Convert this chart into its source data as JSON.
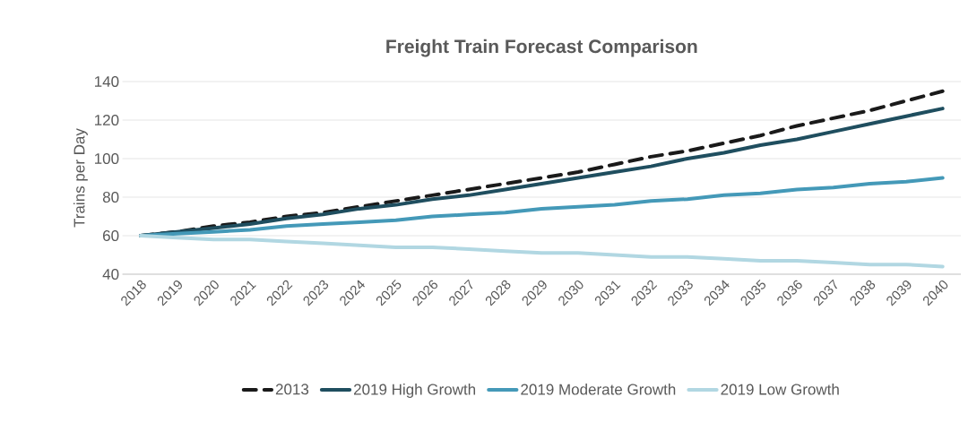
{
  "chart_data": {
    "type": "line",
    "title": "Freight Train Forecast Comparison",
    "ylabel": "Trains per Day",
    "categories": [
      "2018",
      "2019",
      "2020",
      "2021",
      "2022",
      "2023",
      "2024",
      "2025",
      "2026",
      "2027",
      "2028",
      "2029",
      "2030",
      "2031",
      "2032",
      "2033",
      "2034",
      "2035",
      "2036",
      "2037",
      "2038",
      "2039",
      "2040"
    ],
    "series": [
      {
        "name": "2013",
        "color": "#1a1a1a",
        "line_style": "dashed",
        "values": [
          60,
          62,
          65,
          67,
          70,
          72,
          75,
          78,
          81,
          84,
          87,
          90,
          93,
          97,
          101,
          104,
          108,
          112,
          117,
          121,
          125,
          130,
          135
        ]
      },
      {
        "name": "2019 High Growth",
        "color": "#1f4e5f",
        "line_style": "solid",
        "values": [
          60,
          62,
          64,
          66,
          69,
          71,
          74,
          76,
          79,
          81,
          84,
          87,
          90,
          93,
          96,
          100,
          103,
          107,
          110,
          114,
          118,
          122,
          126
        ]
      },
      {
        "name": "2019 Moderate Growth",
        "color": "#4499b8",
        "line_style": "solid",
        "values": [
          60,
          61,
          62,
          63,
          65,
          66,
          67,
          68,
          70,
          71,
          72,
          74,
          75,
          76,
          78,
          79,
          81,
          82,
          84,
          85,
          87,
          88,
          90
        ]
      },
      {
        "name": "2019 Low Growth",
        "color": "#b1d7e2",
        "line_style": "solid",
        "values": [
          60,
          59,
          58,
          58,
          57,
          56,
          55,
          54,
          54,
          53,
          52,
          51,
          51,
          50,
          49,
          49,
          48,
          47,
          47,
          46,
          45,
          45,
          44
        ]
      }
    ],
    "ylim": [
      40,
      140
    ],
    "yticks": [
      40,
      60,
      80,
      100,
      120,
      140
    ],
    "grid": "y",
    "legend": "bottom",
    "marker": "none"
  }
}
